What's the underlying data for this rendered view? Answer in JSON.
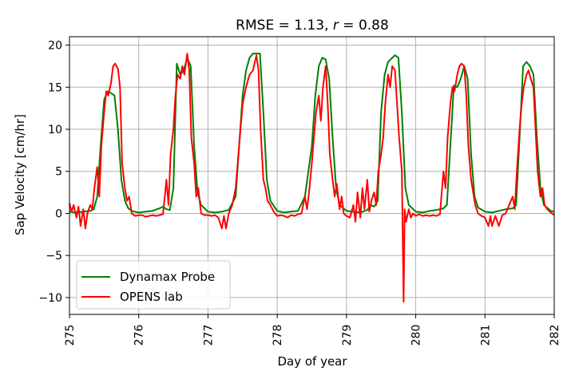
{
  "chart_data": {
    "type": "line",
    "title": "RMSE = 1.13, r = 0.88",
    "title_parts": {
      "prefix": "RMSE = 1.13, ",
      "var": "r",
      "suffix": " = 0.88"
    },
    "xlabel": "Day of year",
    "ylabel": "Sap Velocity [cm/hr]",
    "xlim": [
      275,
      282
    ],
    "ylim": [
      -12,
      21
    ],
    "xticks": [
      "275",
      "276",
      "277",
      "278",
      "279",
      "280",
      "281",
      "282"
    ],
    "yticks": [
      "20",
      "15",
      "10",
      "5",
      "0",
      "−5",
      "−10"
    ],
    "grid": true,
    "legend_position": "lower-left",
    "series": [
      {
        "name": "Dynamax Probe",
        "color": "#008000",
        "points": [
          [
            275.0,
            0.2
          ],
          [
            275.1,
            0.1
          ],
          [
            275.2,
            0.2
          ],
          [
            275.3,
            0.3
          ],
          [
            275.35,
            0.5
          ],
          [
            275.4,
            2.0
          ],
          [
            275.45,
            8.0
          ],
          [
            275.5,
            13.5
          ],
          [
            275.55,
            14.5
          ],
          [
            275.6,
            14.3
          ],
          [
            275.65,
            14.0
          ],
          [
            275.7,
            10.0
          ],
          [
            275.75,
            4.0
          ],
          [
            275.8,
            1.5
          ],
          [
            275.85,
            0.6
          ],
          [
            275.9,
            0.3
          ],
          [
            276.0,
            0.1
          ],
          [
            276.1,
            0.2
          ],
          [
            276.2,
            0.3
          ],
          [
            276.3,
            0.6
          ],
          [
            276.35,
            0.8
          ],
          [
            276.4,
            0.5
          ],
          [
            276.45,
            0.4
          ],
          [
            276.5,
            3.0
          ],
          [
            276.55,
            17.8
          ],
          [
            276.6,
            16.5
          ],
          [
            276.65,
            17.0
          ],
          [
            276.7,
            18.5
          ],
          [
            276.75,
            17.5
          ],
          [
            276.8,
            8.0
          ],
          [
            276.85,
            2.5
          ],
          [
            276.9,
            1.0
          ],
          [
            277.0,
            0.2
          ],
          [
            277.1,
            0.1
          ],
          [
            277.2,
            0.2
          ],
          [
            277.3,
            0.4
          ],
          [
            277.4,
            2.0
          ],
          [
            277.45,
            8.0
          ],
          [
            277.5,
            14.0
          ],
          [
            277.55,
            17.0
          ],
          [
            277.6,
            18.5
          ],
          [
            277.65,
            19.0
          ],
          [
            277.75,
            19.0
          ],
          [
            277.8,
            12.0
          ],
          [
            277.85,
            4.0
          ],
          [
            277.9,
            1.5
          ],
          [
            278.0,
            0.3
          ],
          [
            278.1,
            0.1
          ],
          [
            278.2,
            0.2
          ],
          [
            278.3,
            0.3
          ],
          [
            278.4,
            2.0
          ],
          [
            278.5,
            8.0
          ],
          [
            278.55,
            14.0
          ],
          [
            278.6,
            17.5
          ],
          [
            278.65,
            18.5
          ],
          [
            278.7,
            18.3
          ],
          [
            278.75,
            16.0
          ],
          [
            278.8,
            9.0
          ],
          [
            278.85,
            3.0
          ],
          [
            278.9,
            1.0
          ],
          [
            279.0,
            0.3
          ],
          [
            279.1,
            0.2
          ],
          [
            279.2,
            0.1
          ],
          [
            279.3,
            0.4
          ],
          [
            279.35,
            1.0
          ],
          [
            279.4,
            0.8
          ],
          [
            279.45,
            1.5
          ],
          [
            279.5,
            12.0
          ],
          [
            279.55,
            16.5
          ],
          [
            279.6,
            18.0
          ],
          [
            279.7,
            18.8
          ],
          [
            279.75,
            18.5
          ],
          [
            279.8,
            12.0
          ],
          [
            279.85,
            3.0
          ],
          [
            279.9,
            1.0
          ],
          [
            280.0,
            0.2
          ],
          [
            280.1,
            0.1
          ],
          [
            280.2,
            0.3
          ],
          [
            280.3,
            0.4
          ],
          [
            280.4,
            0.6
          ],
          [
            280.45,
            1.0
          ],
          [
            280.5,
            8.0
          ],
          [
            280.55,
            15.2
          ],
          [
            280.6,
            15.0
          ],
          [
            280.65,
            16.0
          ],
          [
            280.7,
            17.5
          ],
          [
            280.75,
            16.0
          ],
          [
            280.8,
            7.0
          ],
          [
            280.85,
            2.0
          ],
          [
            280.9,
            0.7
          ],
          [
            281.0,
            0.2
          ],
          [
            281.1,
            0.1
          ],
          [
            281.2,
            0.3
          ],
          [
            281.3,
            0.5
          ],
          [
            281.4,
            0.6
          ],
          [
            281.45,
            1.0
          ],
          [
            281.5,
            9.0
          ],
          [
            281.55,
            17.5
          ],
          [
            281.6,
            18.0
          ],
          [
            281.65,
            17.5
          ],
          [
            281.7,
            16.5
          ],
          [
            281.75,
            9.0
          ],
          [
            281.8,
            3.0
          ],
          [
            281.85,
            1.0
          ],
          [
            281.95,
            0.3
          ],
          [
            282.0,
            0.2
          ]
        ]
      },
      {
        "name": "OPENS lab",
        "color": "#ff0000",
        "points": [
          [
            275.0,
            1.2
          ],
          [
            275.03,
            0.2
          ],
          [
            275.06,
            1.0
          ],
          [
            275.1,
            -0.5
          ],
          [
            275.13,
            0.8
          ],
          [
            275.16,
            -1.5
          ],
          [
            275.2,
            0.5
          ],
          [
            275.23,
            -1.8
          ],
          [
            275.26,
            0.0
          ],
          [
            275.3,
            1.0
          ],
          [
            275.33,
            0.5
          ],
          [
            275.36,
            3.0
          ],
          [
            275.4,
            5.5
          ],
          [
            275.43,
            2.0
          ],
          [
            275.46,
            8.0
          ],
          [
            275.5,
            12.0
          ],
          [
            275.53,
            14.5
          ],
          [
            275.56,
            14.0
          ],
          [
            275.6,
            15.5
          ],
          [
            275.63,
            17.5
          ],
          [
            275.66,
            17.8
          ],
          [
            275.7,
            17.2
          ],
          [
            275.73,
            15.0
          ],
          [
            275.76,
            6.0
          ],
          [
            275.8,
            3.0
          ],
          [
            275.83,
            1.5
          ],
          [
            275.86,
            2.0
          ],
          [
            275.9,
            0.0
          ],
          [
            275.95,
            -0.3
          ],
          [
            276.0,
            -0.2
          ],
          [
            276.05,
            -0.2
          ],
          [
            276.1,
            -0.4
          ],
          [
            276.15,
            -0.3
          ],
          [
            276.2,
            -0.2
          ],
          [
            276.25,
            -0.3
          ],
          [
            276.3,
            -0.2
          ],
          [
            276.35,
            -0.1
          ],
          [
            276.4,
            4.0
          ],
          [
            276.43,
            1.0
          ],
          [
            276.46,
            7.0
          ],
          [
            276.5,
            10.0
          ],
          [
            276.53,
            14.0
          ],
          [
            276.56,
            16.5
          ],
          [
            276.6,
            16.0
          ],
          [
            276.63,
            17.5
          ],
          [
            276.66,
            16.5
          ],
          [
            276.7,
            19.0
          ],
          [
            276.73,
            17.0
          ],
          [
            276.76,
            9.0
          ],
          [
            276.8,
            6.0
          ],
          [
            276.83,
            2.0
          ],
          [
            276.86,
            3.0
          ],
          [
            276.9,
            0.0
          ],
          [
            276.95,
            -0.2
          ],
          [
            277.0,
            -0.2
          ],
          [
            277.05,
            -0.3
          ],
          [
            277.1,
            -0.2
          ],
          [
            277.15,
            -0.5
          ],
          [
            277.2,
            -1.8
          ],
          [
            277.23,
            -0.3
          ],
          [
            277.26,
            -1.8
          ],
          [
            277.3,
            0.0
          ],
          [
            277.35,
            1.0
          ],
          [
            277.4,
            3.0
          ],
          [
            277.45,
            8.0
          ],
          [
            277.5,
            13.0
          ],
          [
            277.55,
            15.0
          ],
          [
            277.6,
            16.5
          ],
          [
            277.65,
            17.0
          ],
          [
            277.7,
            18.8
          ],
          [
            277.73,
            17.0
          ],
          [
            277.76,
            10.0
          ],
          [
            277.8,
            4.0
          ],
          [
            277.83,
            3.0
          ],
          [
            277.86,
            1.5
          ],
          [
            277.9,
            1.0
          ],
          [
            277.95,
            0.2
          ],
          [
            278.0,
            -0.3
          ],
          [
            278.05,
            -0.2
          ],
          [
            278.1,
            -0.3
          ],
          [
            278.15,
            -0.5
          ],
          [
            278.2,
            -0.2
          ],
          [
            278.25,
            -0.3
          ],
          [
            278.3,
            -0.1
          ],
          [
            278.35,
            0.0
          ],
          [
            278.4,
            2.0
          ],
          [
            278.43,
            0.5
          ],
          [
            278.46,
            2.5
          ],
          [
            278.5,
            6.0
          ],
          [
            278.53,
            9.0
          ],
          [
            278.56,
            12.0
          ],
          [
            278.6,
            14.0
          ],
          [
            278.63,
            11.0
          ],
          [
            278.66,
            15.0
          ],
          [
            278.7,
            17.5
          ],
          [
            278.73,
            13.0
          ],
          [
            278.76,
            7.0
          ],
          [
            278.8,
            4.0
          ],
          [
            278.83,
            2.0
          ],
          [
            278.86,
            3.5
          ],
          [
            278.9,
            0.5
          ],
          [
            278.93,
            2.0
          ],
          [
            278.96,
            0.0
          ],
          [
            279.0,
            -0.3
          ],
          [
            279.05,
            -0.5
          ],
          [
            279.1,
            1.0
          ],
          [
            279.13,
            -1.0
          ],
          [
            279.16,
            2.5
          ],
          [
            279.2,
            -0.5
          ],
          [
            279.23,
            3.0
          ],
          [
            279.26,
            0.5
          ],
          [
            279.3,
            4.0
          ],
          [
            279.33,
            0.2
          ],
          [
            279.36,
            1.5
          ],
          [
            279.4,
            2.5
          ],
          [
            279.43,
            1.0
          ],
          [
            279.46,
            5.0
          ],
          [
            279.5,
            7.0
          ],
          [
            279.53,
            9.0
          ],
          [
            279.56,
            13.0
          ],
          [
            279.6,
            16.5
          ],
          [
            279.63,
            15.0
          ],
          [
            279.66,
            17.5
          ],
          [
            279.7,
            17.0
          ],
          [
            279.73,
            13.0
          ],
          [
            279.76,
            9.0
          ],
          [
            279.8,
            5.0
          ],
          [
            279.825,
            -10.5
          ],
          [
            279.84,
            0.5
          ],
          [
            279.86,
            -1.0
          ],
          [
            279.9,
            0.5
          ],
          [
            279.93,
            -0.5
          ],
          [
            279.96,
            0.0
          ],
          [
            280.0,
            -0.3
          ],
          [
            280.05,
            -0.1
          ],
          [
            280.1,
            -0.3
          ],
          [
            280.15,
            -0.2
          ],
          [
            280.2,
            -0.3
          ],
          [
            280.25,
            -0.2
          ],
          [
            280.3,
            -0.3
          ],
          [
            280.35,
            -0.1
          ],
          [
            280.4,
            5.0
          ],
          [
            280.43,
            3.0
          ],
          [
            280.46,
            9.0
          ],
          [
            280.5,
            13.0
          ],
          [
            280.53,
            15.0
          ],
          [
            280.56,
            14.5
          ],
          [
            280.6,
            16.5
          ],
          [
            280.63,
            17.5
          ],
          [
            280.66,
            17.8
          ],
          [
            280.7,
            17.5
          ],
          [
            280.73,
            14.0
          ],
          [
            280.76,
            8.0
          ],
          [
            280.8,
            4.0
          ],
          [
            280.83,
            2.5
          ],
          [
            280.86,
            1.0
          ],
          [
            280.9,
            0.0
          ],
          [
            280.95,
            -0.3
          ],
          [
            281.0,
            -0.5
          ],
          [
            281.05,
            -1.5
          ],
          [
            281.08,
            -0.3
          ],
          [
            281.1,
            -1.5
          ],
          [
            281.15,
            -0.3
          ],
          [
            281.2,
            -1.5
          ],
          [
            281.25,
            -0.2
          ],
          [
            281.3,
            0.0
          ],
          [
            281.35,
            1.0
          ],
          [
            281.4,
            2.0
          ],
          [
            281.43,
            0.5
          ],
          [
            281.46,
            5.0
          ],
          [
            281.5,
            10.0
          ],
          [
            281.53,
            13.0
          ],
          [
            281.56,
            15.0
          ],
          [
            281.6,
            16.5
          ],
          [
            281.63,
            17.0
          ],
          [
            281.66,
            16.0
          ],
          [
            281.7,
            15.0
          ],
          [
            281.73,
            10.0
          ],
          [
            281.76,
            5.0
          ],
          [
            281.8,
            2.0
          ],
          [
            281.83,
            3.0
          ],
          [
            281.86,
            1.0
          ],
          [
            281.9,
            0.5
          ],
          [
            281.95,
            0.1
          ],
          [
            282.0,
            -0.2
          ]
        ]
      }
    ]
  }
}
